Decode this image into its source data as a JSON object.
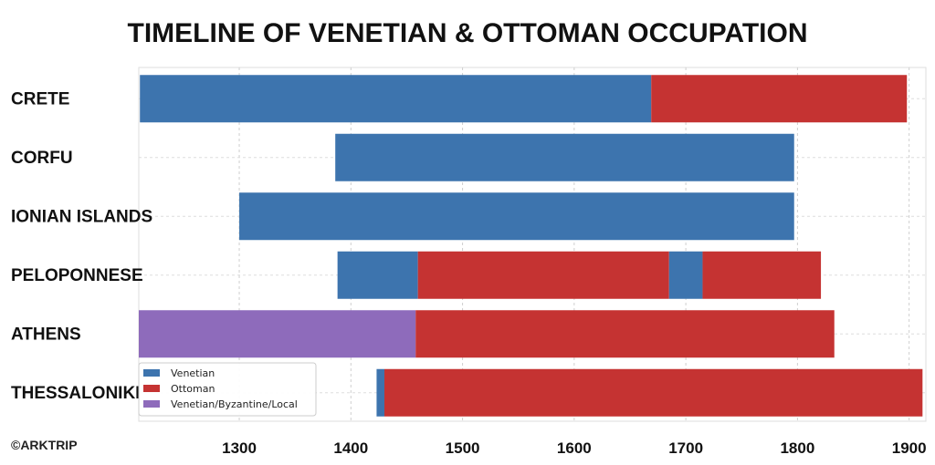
{
  "chart_data": {
    "type": "bar",
    "orientation": "horizontal-stacked-timeline",
    "title": "TIMELINE OF VENETIAN & OTTOMAN OCCUPATION",
    "xlabel": "",
    "ylabel": "",
    "xlim": [
      1210,
      1915
    ],
    "xticks": [
      1300,
      1400,
      1500,
      1600,
      1700,
      1800,
      1900
    ],
    "grid": true,
    "legend_position": "bottom-left",
    "categories": [
      "CRETE",
      "CORFU",
      "IONIAN ISLANDS",
      "PELOPONNESE",
      "ATHENS",
      "THESSALONIKI"
    ],
    "series": [
      {
        "name": "Venetian",
        "color": "#3d74ae"
      },
      {
        "name": "Ottoman",
        "color": "#c53332"
      },
      {
        "name": "Venetian/Byzantine/Local",
        "color": "#8e6bbb"
      }
    ],
    "segments": [
      {
        "category": "CRETE",
        "series": "Venetian",
        "start": 1211,
        "end": 1669
      },
      {
        "category": "CRETE",
        "series": "Ottoman",
        "start": 1669,
        "end": 1898
      },
      {
        "category": "CORFU",
        "series": "Venetian",
        "start": 1386,
        "end": 1797
      },
      {
        "category": "IONIAN ISLANDS",
        "series": "Venetian",
        "start": 1300,
        "end": 1797
      },
      {
        "category": "PELOPONNESE",
        "series": "Venetian",
        "start": 1388,
        "end": 1460
      },
      {
        "category": "PELOPONNESE",
        "series": "Ottoman",
        "start": 1460,
        "end": 1685
      },
      {
        "category": "PELOPONNESE",
        "series": "Venetian",
        "start": 1685,
        "end": 1715
      },
      {
        "category": "PELOPONNESE",
        "series": "Ottoman",
        "start": 1715,
        "end": 1821
      },
      {
        "category": "ATHENS",
        "series": "Venetian/Byzantine/Local",
        "start": 1210,
        "end": 1458
      },
      {
        "category": "ATHENS",
        "series": "Ottoman",
        "start": 1458,
        "end": 1833
      },
      {
        "category": "THESSALONIKI",
        "series": "Venetian",
        "start": 1423,
        "end": 1430
      },
      {
        "category": "THESSALONIKI",
        "series": "Ottoman",
        "start": 1430,
        "end": 1912
      }
    ]
  },
  "credit": "©ARKTRIP"
}
